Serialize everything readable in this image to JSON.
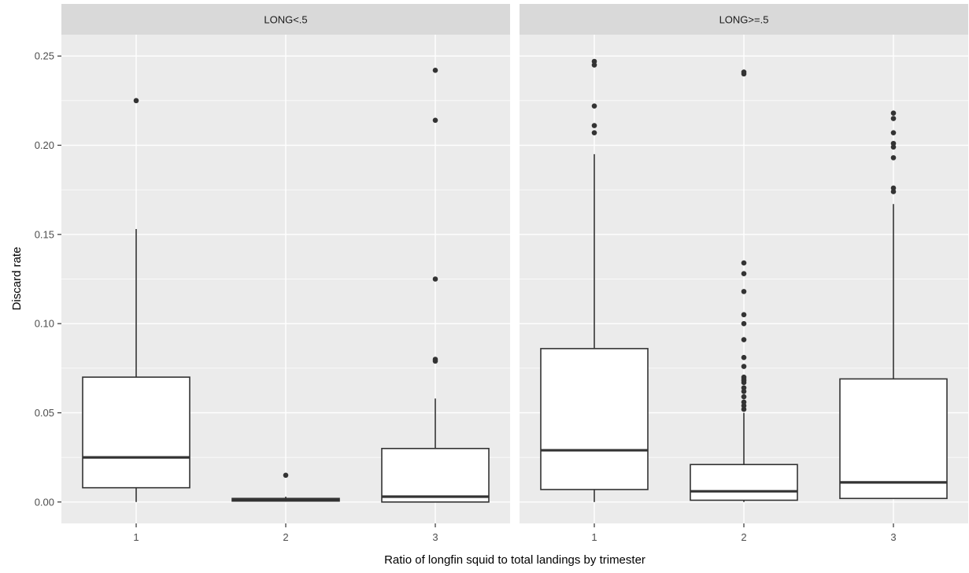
{
  "chart_data": {
    "type": "boxplot",
    "xlabel": "Ratio of longfin squid to total landings by trimester",
    "ylabel": "Discard rate",
    "categories": [
      "1",
      "2",
      "3"
    ],
    "y_ticks": [
      "0.00",
      "0.05",
      "0.10",
      "0.15",
      "0.20",
      "0.25"
    ],
    "y_tick_values": [
      0,
      0.05,
      0.1,
      0.15,
      0.2,
      0.25
    ],
    "ylim": [
      -0.012,
      0.262
    ],
    "grid": true,
    "facets": [
      {
        "label": "LONG<.5",
        "boxes": [
          {
            "category": "1",
            "lower_whisker": 0.0,
            "q1": 0.008,
            "median": 0.025,
            "q3": 0.07,
            "upper_whisker": 0.153,
            "outliers": [
              0.225
            ]
          },
          {
            "category": "2",
            "lower_whisker": 0.0005,
            "q1": 0.0005,
            "median": 0.0015,
            "q3": 0.002,
            "upper_whisker": 0.003,
            "outliers": [
              0.015
            ]
          },
          {
            "category": "3",
            "lower_whisker": 0.0,
            "q1": 0.0,
            "median": 0.003,
            "q3": 0.03,
            "upper_whisker": 0.058,
            "outliers": [
              0.079,
              0.08,
              0.125,
              0.214,
              0.242
            ]
          }
        ]
      },
      {
        "label": "LONG>=.5",
        "boxes": [
          {
            "category": "1",
            "lower_whisker": 0.0,
            "q1": 0.007,
            "median": 0.029,
            "q3": 0.086,
            "upper_whisker": 0.195,
            "outliers": [
              0.207,
              0.211,
              0.222,
              0.245,
              0.247
            ]
          },
          {
            "category": "2",
            "lower_whisker": 0.0,
            "q1": 0.001,
            "median": 0.006,
            "q3": 0.021,
            "upper_whisker": 0.05,
            "outliers": [
              0.052,
              0.054,
              0.056,
              0.059,
              0.062,
              0.064,
              0.067,
              0.068,
              0.069,
              0.07,
              0.076,
              0.081,
              0.091,
              0.1,
              0.105,
              0.118,
              0.128,
              0.134,
              0.24,
              0.241
            ]
          },
          {
            "category": "3",
            "lower_whisker": 0.002,
            "q1": 0.002,
            "median": 0.011,
            "q3": 0.069,
            "upper_whisker": 0.167,
            "outliers": [
              0.174,
              0.176,
              0.193,
              0.199,
              0.201,
              0.207,
              0.215,
              0.218
            ]
          }
        ]
      }
    ],
    "colors": {
      "panel_bg": "#ebebeb",
      "strip_bg": "#d9d9d9",
      "grid": "#ffffff",
      "box_fill": "#ffffff",
      "ink": "#333333",
      "axis_text": "#4d4d4d",
      "title_text": "#000000"
    }
  }
}
